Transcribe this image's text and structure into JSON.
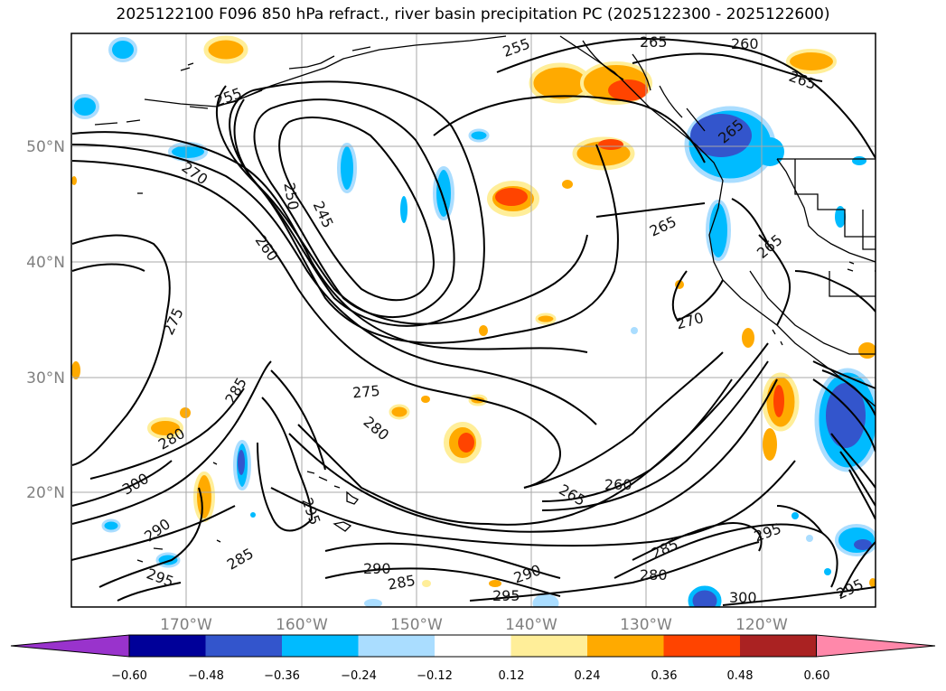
{
  "title": "2025122100 F096 850 hPa refract., river basin precipitation PC (2025122300 - 2025122600)",
  "map": {
    "lat_labels": [
      "50°N",
      "40°N",
      "30°N",
      "20°N"
    ],
    "lon_labels": [
      "170°W",
      "160°W",
      "150°W",
      "140°W",
      "130°W",
      "120°W"
    ],
    "contour_labels": [
      "255",
      "255",
      "265",
      "260",
      "265",
      "265",
      "270",
      "250",
      "245",
      "260",
      "265",
      "265",
      "275",
      "270",
      "285",
      "275",
      "280",
      "280",
      "300",
      "260",
      "265",
      "290",
      "295",
      "285",
      "295",
      "290",
      "285",
      "280",
      "290",
      "295",
      "300",
      "295",
      "285"
    ]
  },
  "colorbar": {
    "colors": [
      "#9933cc",
      "#000099",
      "#3355cc",
      "#00bbff",
      "#aaddff",
      "#ffffff",
      "#ffee99",
      "#ffaa00",
      "#ff4400",
      "#aa2222",
      "#ff88aa"
    ],
    "tick_labels": [
      "−0.60",
      "−0.48",
      "−0.36",
      "−0.24",
      "−0.12",
      "0.12",
      "0.24",
      "0.36",
      "0.48",
      "0.60"
    ]
  }
}
